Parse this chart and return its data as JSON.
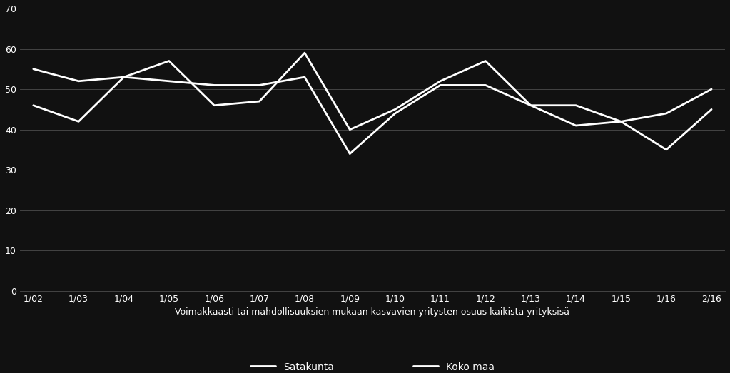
{
  "x_labels": [
    "1/02",
    "1/03",
    "1/04",
    "1/05",
    "1/06",
    "1/07",
    "1/08",
    "1/09",
    "1/10",
    "1/11",
    "1/12",
    "1/13",
    "1/14",
    "1/15",
    "1/16",
    "2/16"
  ],
  "satakunta": [
    46,
    42,
    53,
    57,
    46,
    47,
    59,
    40,
    45,
    52,
    57,
    46,
    41,
    42,
    35,
    45
  ],
  "koko_maa": [
    55,
    52,
    53,
    52,
    51,
    51,
    53,
    34,
    44,
    51,
    51,
    46,
    46,
    42,
    44,
    50
  ],
  "xlabel": "Voimakkaasti tai mahdollisuuksien mukaan kasvavien yritysten osuus kaikista yrityksisä",
  "legend_satakunta": "Satakunta",
  "legend_koko_maa": "Koko maa",
  "ylim": [
    0,
    70
  ],
  "yticks": [
    0,
    10,
    20,
    30,
    40,
    50,
    60,
    70
  ],
  "background_color": "#111111",
  "line_color": "#ffffff",
  "grid_color": "#444444",
  "text_color": "#ffffff",
  "line_width": 2.0,
  "font_size_ticks": 9,
  "font_size_xlabel": 9,
  "font_size_legend": 10
}
